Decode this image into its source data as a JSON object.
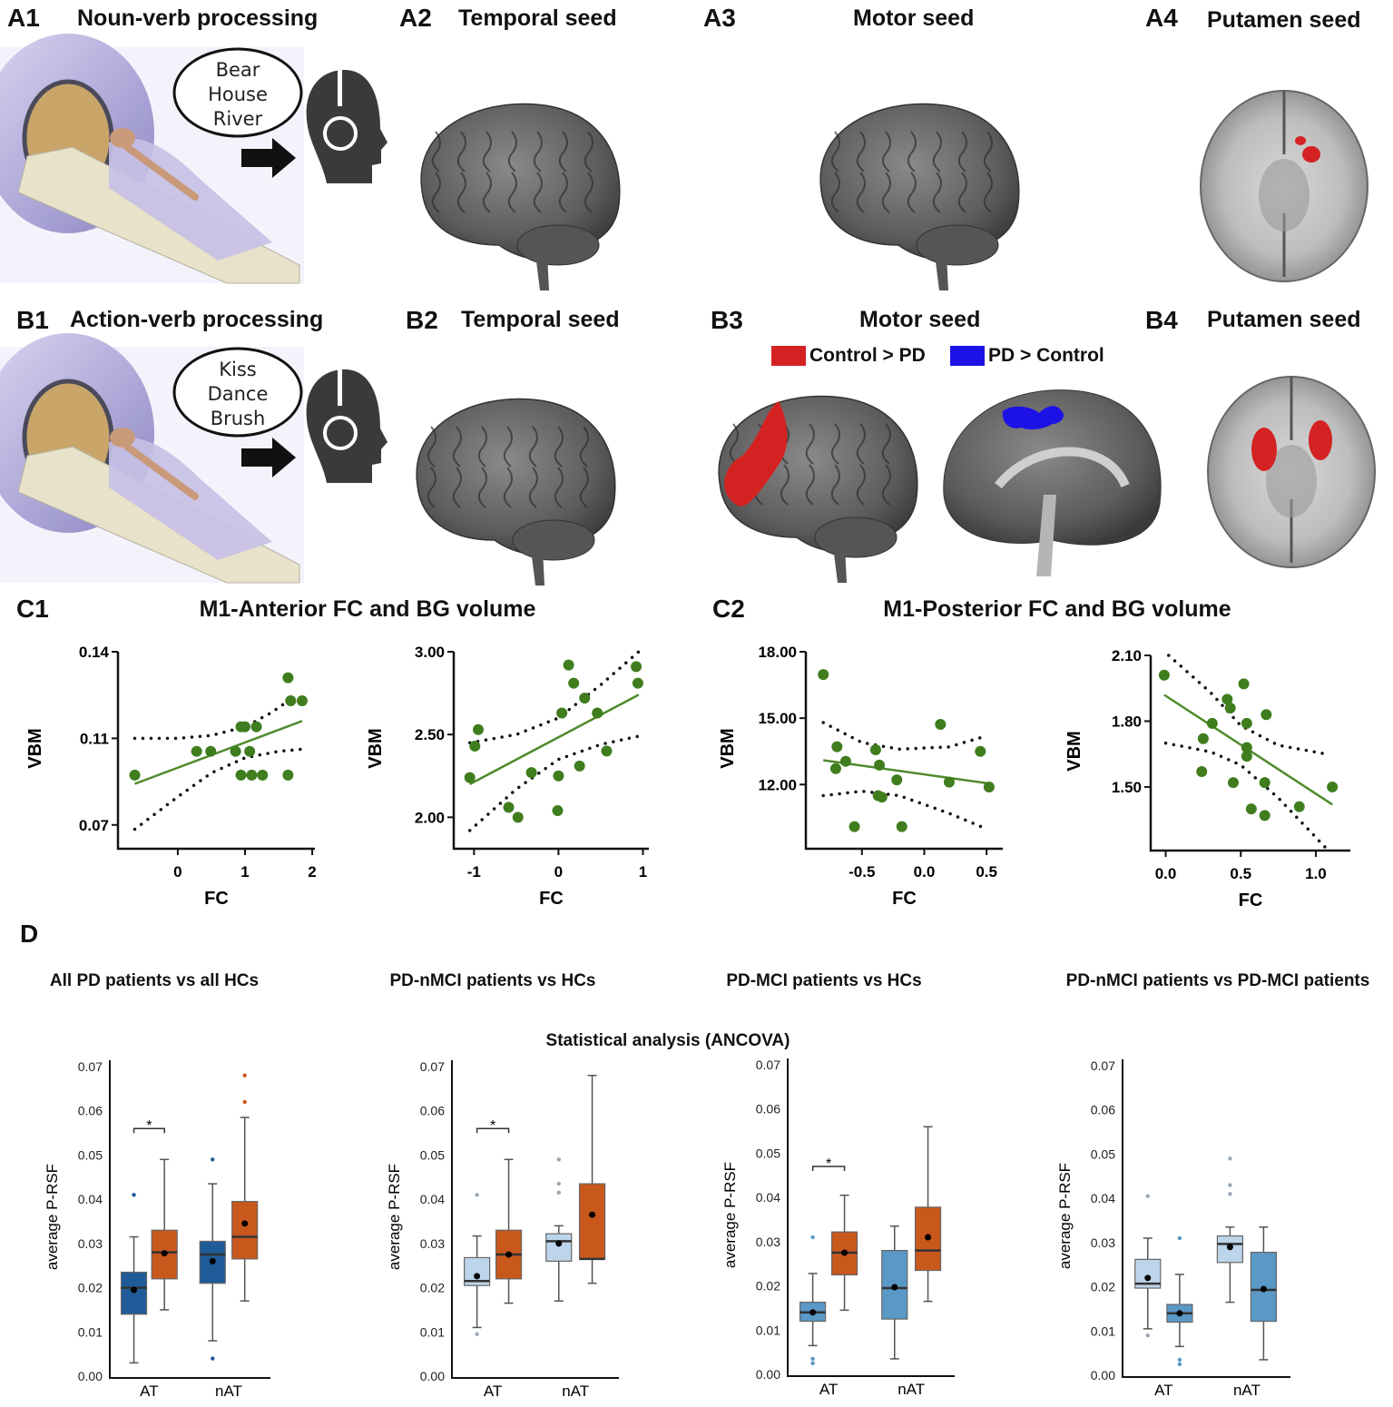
{
  "panels": {
    "A1": {
      "label": "A1",
      "title": "Noun-verb processing",
      "words": [
        "Bear",
        "House",
        "River"
      ]
    },
    "A2": {
      "label": "A2",
      "title": "Temporal seed"
    },
    "A3": {
      "label": "A3",
      "title": "Motor seed"
    },
    "A4": {
      "label": "A4",
      "title": "Putamen seed"
    },
    "B1": {
      "label": "B1",
      "title": "Action-verb processing",
      "words": [
        "Kiss",
        "Dance",
        "Brush"
      ]
    },
    "B2": {
      "label": "B2",
      "title": "Temporal seed"
    },
    "B3": {
      "label": "B3",
      "title": "Motor seed",
      "legend": [
        {
          "label": "Control > PD",
          "color": "#d42222"
        },
        {
          "label": "PD > Control",
          "color": "#1c12e6"
        }
      ]
    },
    "B4": {
      "label": "B4",
      "title": "Putamen seed"
    },
    "C1": {
      "label": "C1",
      "title": "M1-Anterior FC and BG volume"
    },
    "C2": {
      "label": "C2",
      "title": "M1-Posterior FC and BG volume"
    },
    "D": {
      "label": "D",
      "subtitles": [
        "All PD patients vs all HCs",
        "PD-nMCI patients vs HCs",
        "PD-MCI patients vs HCs",
        "PD-nMCI patients vs PD-MCI patients"
      ],
      "center_title": "Statistical analysis (ANCOVA)"
    }
  },
  "colors": {
    "scatter_point": "#3f7d1e",
    "fit_line": "#4f8a2c",
    "hc_dark_blue": "#1f5b98",
    "pd_orange": "#c9581d",
    "light_blue": "#bdd5ea",
    "mid_blue": "#5a98c6",
    "activation_red": "#d42222",
    "activation_blue": "#1c12e6"
  },
  "chart_data": [
    {
      "type": "scatter",
      "panel": "C1-left",
      "xlabel": "FC",
      "ylabel": "VBM",
      "xlim": [
        -0.89,
        2.04
      ],
      "xticks": [
        0,
        1,
        2
      ],
      "xtick_labels": [
        "0",
        "1",
        "2"
      ],
      "ylim": [
        0.059,
        0.14
      ],
      "yticks": [
        0.07,
        0.11,
        0.14
      ],
      "ytick_labels": [
        "0.07",
        "0.11",
        "0.14"
      ],
      "points": [
        [
          -0.64,
          0.093
        ],
        [
          0.28,
          0.104
        ],
        [
          0.49,
          0.104
        ],
        [
          0.86,
          0.104
        ],
        [
          1.07,
          0.104
        ],
        [
          0.94,
          0.114
        ],
        [
          1.0,
          0.114
        ],
        [
          1.17,
          0.114
        ],
        [
          0.94,
          0.093
        ],
        [
          1.1,
          0.093
        ],
        [
          1.26,
          0.093
        ],
        [
          1.64,
          0.093
        ],
        [
          1.64,
          0.131
        ],
        [
          1.68,
          0.123
        ],
        [
          1.85,
          0.123
        ]
      ],
      "fit": [
        [
          -0.64,
          0.089
        ],
        [
          1.85,
          0.116
        ]
      ],
      "ci_upper": [
        [
          -0.64,
          0.11
        ],
        [
          0.0,
          0.11
        ],
        [
          0.5,
          0.111
        ],
        [
          1.0,
          0.114
        ],
        [
          1.4,
          0.119
        ],
        [
          1.7,
          0.124
        ]
      ],
      "ci_lower": [
        [
          -0.64,
          0.068
        ],
        [
          0.0,
          0.083
        ],
        [
          0.5,
          0.094
        ],
        [
          1.0,
          0.101
        ],
        [
          1.5,
          0.104
        ],
        [
          1.85,
          0.105
        ]
      ]
    },
    {
      "type": "scatter",
      "panel": "C1-right",
      "xlabel": "FC",
      "ylabel": "VBM",
      "xlim": [
        -1.24,
        1.07
      ],
      "xticks": [
        -1,
        0,
        1
      ],
      "xtick_labels": [
        "-1",
        "0",
        "1"
      ],
      "ylim": [
        1.81,
        3.0
      ],
      "yticks": [
        2.0,
        2.5,
        3.0
      ],
      "ytick_labels": [
        "2.00",
        "2.50",
        "3.00"
      ],
      "points": [
        [
          -1.05,
          2.24
        ],
        [
          -0.95,
          2.53
        ],
        [
          -0.99,
          2.43
        ],
        [
          -0.59,
          2.06
        ],
        [
          -0.48,
          2.0
        ],
        [
          -0.32,
          2.27
        ],
        [
          0.0,
          2.25
        ],
        [
          -0.01,
          2.04
        ],
        [
          0.04,
          2.63
        ],
        [
          0.12,
          2.92
        ],
        [
          0.18,
          2.81
        ],
        [
          0.31,
          2.72
        ],
        [
          0.25,
          2.31
        ],
        [
          0.46,
          2.63
        ],
        [
          0.57,
          2.4
        ],
        [
          0.92,
          2.91
        ],
        [
          0.94,
          2.81
        ]
      ],
      "fit": [
        [
          -1.05,
          2.2
        ],
        [
          0.95,
          2.74
        ]
      ],
      "ci_upper": [
        [
          -1.05,
          2.45
        ],
        [
          -0.5,
          2.5
        ],
        [
          0.0,
          2.6
        ],
        [
          0.5,
          2.8
        ],
        [
          0.95,
          3.0
        ]
      ],
      "ci_lower": [
        [
          -1.05,
          1.92
        ],
        [
          -0.5,
          2.17
        ],
        [
          0.0,
          2.35
        ],
        [
          0.5,
          2.44
        ],
        [
          0.95,
          2.49
        ]
      ]
    },
    {
      "type": "scatter",
      "panel": "C2-left",
      "xlabel": "FC",
      "ylabel": "VBM",
      "xlim": [
        -0.95,
        0.63
      ],
      "xticks": [
        -0.5,
        0.0,
        0.5
      ],
      "xtick_labels": [
        "-0.5",
        "0.0",
        "0.5"
      ],
      "ylim": [
        9.1,
        18.0
      ],
      "yticks": [
        12.0,
        15.0,
        18.0
      ],
      "ytick_labels": [
        "12.00",
        "15.00",
        "18.00"
      ],
      "points": [
        [
          -0.81,
          16.97
        ],
        [
          -0.7,
          13.71
        ],
        [
          -0.71,
          12.72
        ],
        [
          -0.63,
          13.05
        ],
        [
          -0.39,
          13.57
        ],
        [
          -0.36,
          12.88
        ],
        [
          -0.37,
          11.5
        ],
        [
          -0.34,
          11.43
        ],
        [
          -0.56,
          10.1
        ],
        [
          -0.22,
          12.21
        ],
        [
          -0.18,
          10.1
        ],
        [
          0.13,
          14.72
        ],
        [
          0.2,
          12.11
        ],
        [
          0.45,
          13.5
        ],
        [
          0.52,
          11.89
        ]
      ],
      "fit": [
        [
          -0.81,
          13.1
        ],
        [
          0.52,
          12.05
        ]
      ],
      "ci_upper": [
        [
          -0.81,
          14.8
        ],
        [
          -0.5,
          13.9
        ],
        [
          -0.2,
          13.6
        ],
        [
          0.2,
          13.7
        ],
        [
          0.5,
          14.2
        ]
      ],
      "ci_lower": [
        [
          -0.81,
          11.5
        ],
        [
          -0.5,
          11.7
        ],
        [
          -0.2,
          11.5
        ],
        [
          0.2,
          10.7
        ],
        [
          0.5,
          10.0
        ]
      ]
    },
    {
      "type": "scatter",
      "panel": "C2-right",
      "xlabel": "FC",
      "ylabel": "VBM",
      "xlim": [
        -0.1,
        1.23
      ],
      "xticks": [
        0.0,
        0.5,
        1.0
      ],
      "xtick_labels": [
        "0.0",
        "0.5",
        "1.0"
      ],
      "ylim": [
        1.21,
        2.1
      ],
      "yticks": [
        1.5,
        1.8,
        2.1
      ],
      "ytick_labels": [
        "1.50",
        "1.80",
        "2.10"
      ],
      "points": [
        [
          -0.01,
          2.01
        ],
        [
          0.52,
          1.97
        ],
        [
          0.41,
          1.9
        ],
        [
          0.43,
          1.86
        ],
        [
          0.67,
          1.83
        ],
        [
          0.31,
          1.79
        ],
        [
          0.54,
          1.79
        ],
        [
          0.25,
          1.72
        ],
        [
          0.54,
          1.68
        ],
        [
          0.54,
          1.64
        ],
        [
          0.24,
          1.57
        ],
        [
          0.45,
          1.52
        ],
        [
          0.66,
          1.52
        ],
        [
          1.11,
          1.5
        ],
        [
          0.57,
          1.4
        ],
        [
          0.66,
          1.37
        ],
        [
          0.89,
          1.41
        ]
      ],
      "fit": [
        [
          -0.01,
          1.92
        ],
        [
          1.11,
          1.42
        ]
      ],
      "ci_upper": [
        [
          0.02,
          2.1
        ],
        [
          0.3,
          1.93
        ],
        [
          0.5,
          1.78
        ],
        [
          0.75,
          1.69
        ],
        [
          1.07,
          1.65
        ]
      ],
      "ci_lower": [
        [
          0.0,
          1.7
        ],
        [
          0.3,
          1.66
        ],
        [
          0.5,
          1.6
        ],
        [
          0.75,
          1.45
        ],
        [
          1.07,
          1.22
        ]
      ]
    },
    {
      "type": "box",
      "panel": "D-all-PD-vs-HC",
      "ylabel": "average P-RSF",
      "ylim": [
        0,
        0.07
      ],
      "yticks": [
        0,
        0.01,
        0.02,
        0.03,
        0.04,
        0.05,
        0.06,
        0.07
      ],
      "ytick_labels": [
        "0.00",
        "0.01",
        "0.02",
        "0.03",
        "0.04",
        "0.05",
        "0.06",
        "0.07"
      ],
      "categories": [
        "AT",
        "nAT"
      ],
      "significance": {
        "category": "AT",
        "y": 0.056,
        "label": "*"
      },
      "boxes": [
        {
          "category": "AT",
          "color": "#1f5b98",
          "low": 0.003,
          "q1": 0.014,
          "median": 0.02,
          "q3": 0.0235,
          "high": 0.0315,
          "mean": 0.0195,
          "outliers": [
            0.041
          ]
        },
        {
          "category": "AT",
          "color": "#c9581d",
          "low": 0.015,
          "q1": 0.022,
          "median": 0.028,
          "q3": 0.033,
          "high": 0.049,
          "mean": 0.0278,
          "outliers": []
        },
        {
          "category": "nAT",
          "color": "#1f5b98",
          "low": 0.008,
          "q1": 0.021,
          "median": 0.0275,
          "q3": 0.0305,
          "high": 0.0435,
          "mean": 0.026,
          "outliers": [
            0.049,
            0.004
          ]
        },
        {
          "category": "nAT",
          "color": "#c9581d",
          "low": 0.017,
          "q1": 0.0265,
          "median": 0.0315,
          "q3": 0.0395,
          "high": 0.0585,
          "mean": 0.0345,
          "outliers": [
            0.062,
            0.068
          ]
        }
      ]
    },
    {
      "type": "box",
      "panel": "D-PD-nMCI-vs-HC",
      "ylabel": "average P-RSF",
      "ylim": [
        0,
        0.07
      ],
      "yticks": [
        0,
        0.01,
        0.02,
        0.03,
        0.04,
        0.05,
        0.06,
        0.07
      ],
      "ytick_labels": [
        "0.00",
        "0.01",
        "0.02",
        "0.03",
        "0.04",
        "0.05",
        "0.06",
        "0.07"
      ],
      "categories": [
        "AT",
        "nAT"
      ],
      "significance": {
        "category": "AT",
        "y": 0.056,
        "label": "*"
      },
      "boxes": [
        {
          "category": "AT",
          "color": "#bdd5ea",
          "low": 0.011,
          "q1": 0.0205,
          "median": 0.0215,
          "q3": 0.0268,
          "high": 0.0317,
          "mean": 0.0226,
          "outliers": [
            0.041,
            0.0095
          ]
        },
        {
          "category": "AT",
          "color": "#c9581d",
          "low": 0.0165,
          "q1": 0.022,
          "median": 0.0275,
          "q3": 0.033,
          "high": 0.049,
          "mean": 0.0275,
          "outliers": []
        },
        {
          "category": "nAT",
          "color": "#bdd5ea",
          "low": 0.017,
          "q1": 0.026,
          "median": 0.0305,
          "q3": 0.0322,
          "high": 0.034,
          "mean": 0.03,
          "outliers": [
            0.049,
            0.0435,
            0.0415
          ]
        },
        {
          "category": "nAT",
          "color": "#c9581d",
          "low": 0.021,
          "q1": 0.0265,
          "median": 0.0265,
          "q3": 0.0435,
          "high": 0.068,
          "mean": 0.0365,
          "outliers": []
        }
      ]
    },
    {
      "type": "box",
      "panel": "D-PD-MCI-vs-HC",
      "ylabel": "average P-RSF",
      "ylim": [
        0,
        0.07
      ],
      "yticks": [
        0,
        0.01,
        0.02,
        0.03,
        0.04,
        0.05,
        0.06,
        0.07
      ],
      "ytick_labels": [
        "0.00",
        "0.01",
        "0.02",
        "0.03",
        "0.04",
        "0.05",
        "0.06",
        "0.07"
      ],
      "categories": [
        "AT",
        "nAT"
      ],
      "significance": {
        "category": "AT",
        "y": 0.047,
        "label": "*"
      },
      "boxes": [
        {
          "category": "AT",
          "color": "#5a98c6",
          "low": 0.0065,
          "q1": 0.012,
          "median": 0.014,
          "q3": 0.0163,
          "high": 0.0228,
          "mean": 0.014,
          "outliers": [
            0.031,
            0.0035,
            0.0025
          ]
        },
        {
          "category": "AT",
          "color": "#c9581d",
          "low": 0.0145,
          "q1": 0.0225,
          "median": 0.0275,
          "q3": 0.0322,
          "high": 0.0405,
          "mean": 0.0275,
          "outliers": []
        },
        {
          "category": "nAT",
          "color": "#5a98c6",
          "low": 0.0035,
          "q1": 0.0125,
          "median": 0.0195,
          "q3": 0.028,
          "high": 0.0335,
          "mean": 0.0197,
          "outliers": []
        },
        {
          "category": "nAT",
          "color": "#c9581d",
          "low": 0.0165,
          "q1": 0.0235,
          "median": 0.028,
          "q3": 0.0378,
          "high": 0.056,
          "mean": 0.031,
          "outliers": []
        }
      ]
    },
    {
      "type": "box",
      "panel": "D-PD-nMCI-vs-PD-MCI",
      "ylabel": "average P-RSF",
      "ylim": [
        0,
        0.07
      ],
      "yticks": [
        0,
        0.01,
        0.02,
        0.03,
        0.04,
        0.05,
        0.06,
        0.07
      ],
      "ytick_labels": [
        "0.00",
        "0.01",
        "0.02",
        "0.03",
        "0.04",
        "0.05",
        "0.06",
        "0.07"
      ],
      "categories": [
        "AT",
        "nAT"
      ],
      "boxes": [
        {
          "category": "AT",
          "color": "#bdd5ea",
          "low": 0.0105,
          "q1": 0.0197,
          "median": 0.0207,
          "q3": 0.0262,
          "high": 0.031,
          "mean": 0.022,
          "outliers": [
            0.0405,
            0.009
          ]
        },
        {
          "category": "AT",
          "color": "#5a98c6",
          "low": 0.0065,
          "q1": 0.012,
          "median": 0.014,
          "q3": 0.016,
          "high": 0.0228,
          "mean": 0.014,
          "outliers": [
            0.031,
            0.0035,
            0.0025
          ]
        },
        {
          "category": "nAT",
          "color": "#bdd5ea",
          "low": 0.0165,
          "q1": 0.0255,
          "median": 0.0297,
          "q3": 0.0315,
          "high": 0.0335,
          "mean": 0.029,
          "outliers": [
            0.049,
            0.043,
            0.041
          ]
        },
        {
          "category": "nAT",
          "color": "#5a98c6",
          "low": 0.0035,
          "q1": 0.0122,
          "median": 0.0193,
          "q3": 0.0278,
          "high": 0.0335,
          "mean": 0.0195,
          "outliers": []
        }
      ]
    }
  ]
}
